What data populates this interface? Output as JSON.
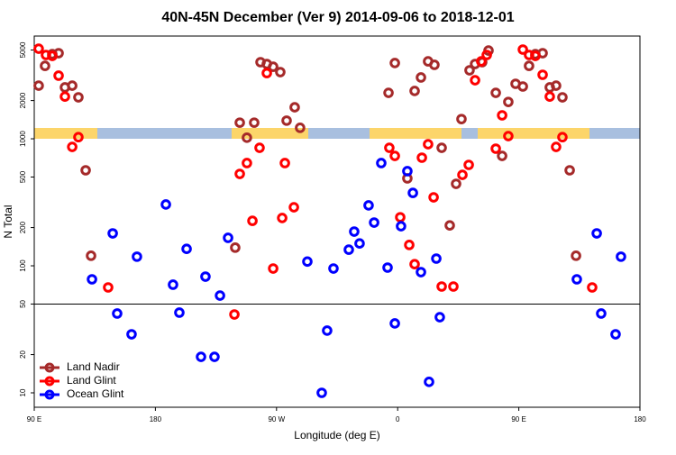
{
  "chart_data": {
    "type": "scatter",
    "title": "40N-45N December (Ver 9)   2014-09-06 to 2018-12-01",
    "x_label": "Longitude (deg E)",
    "y_label": "N Total",
    "xlim": [
      90,
      540
    ],
    "ylim": [
      7.7,
      6440
    ],
    "y_log": true,
    "legend": "lower left",
    "reference_line": 50,
    "xticks": [
      {
        "value": 90,
        "label": "90 E"
      },
      180,
      {
        "value": 270,
        "label": "90 W"
      },
      {
        "value": 360,
        "label": "0"
      },
      {
        "value": 450,
        "label": "90 E"
      },
      {
        "value": 540,
        "label": "180"
      }
    ],
    "yticks": [
      10,
      20,
      50,
      100,
      200,
      500,
      1000,
      2000,
      5000
    ],
    "series": [
      {
        "name": "Land Nadir",
        "color": "#a52a2a",
        "x": [
          93.3,
          98.0,
          103.4,
          108.1,
          112.8,
          118.2,
          122.8,
          128.2,
          132.2,
          239.3,
          242.7,
          248.0,
          253.4,
          258.1,
          262.8,
          267.5,
          272.8,
          277.5,
          283.5,
          287.5,
          353.2,
          357.9,
          367.2,
          372.6,
          377.3,
          382.6,
          387.3,
          392.7,
          398.7,
          403.4,
          407.4,
          413.4,
          417.5,
          422.8,
          427.5,
          432.9,
          437.6,
          442.2,
          447.6,
          453.0,
          457.6,
          462.3,
          467.7,
          473.0,
          477.7,
          482.4,
          487.8,
          492.5
        ],
        "values": [
          2620,
          3750,
          4640,
          4720,
          2540,
          2620,
          2120,
          565,
          120,
          139,
          1340,
          1020,
          1340,
          4010,
          3880,
          3690,
          3350,
          1390,
          1770,
          1220,
          2300,
          3950,
          488,
          2380,
          3040,
          4070,
          3820,
          849,
          208,
          442,
          1430,
          3460,
          3880,
          4010,
          4950,
          2300,
          733,
          1950,
          2710,
          2580,
          3750,
          4640,
          4720,
          2540,
          2620,
          2120,
          565,
          120
        ]
      },
      {
        "name": "Land Glint",
        "color": "#ff0000",
        "x": [
          93.3,
          98.7,
          103.4,
          108.1,
          112.8,
          118.2,
          122.8,
          144.9,
          238.7,
          242.7,
          248.0,
          252.1,
          257.4,
          262.8,
          267.5,
          274.2,
          276.2,
          282.9,
          353.8,
          357.9,
          361.9,
          368.6,
          372.6,
          378.0,
          382.6,
          386.7,
          392.7,
          401.4,
          408.1,
          412.8,
          417.5,
          422.1,
          426.2,
          432.9,
          437.6,
          442.2,
          453.0,
          457.6,
          462.3,
          467.7,
          473.0,
          477.7,
          482.4,
          504.5
        ],
        "values": [
          5120,
          4570,
          4490,
          3140,
          2150,
          863,
          1030,
          67.6,
          41.4,
          529,
          644,
          226,
          849,
          3290,
          95.2,
          238,
          644,
          289,
          849,
          733,
          241,
          146,
          103,
          710,
          906,
          346,
          68.7,
          68.7,
          520,
          623,
          2890,
          4070,
          4570,
          836,
          1530,
          1050,
          5040,
          4570,
          4490,
          3190,
          2150,
          863,
          1030,
          67.6
        ]
      },
      {
        "name": "Ocean Glint",
        "color": "#0000ff",
        "x": [
          132.9,
          148.3,
          151.6,
          162.3,
          166.3,
          187.8,
          193.1,
          197.8,
          203.2,
          213.9,
          217.2,
          223.9,
          228.0,
          234.0,
          292.9,
          303.6,
          307.6,
          312.3,
          323.7,
          327.7,
          331.7,
          338.4,
          342.5,
          347.8,
          352.5,
          357.9,
          362.5,
          367.2,
          371.3,
          377.3,
          383.3,
          388.7,
          391.3,
          493.1,
          507.9,
          511.2,
          521.9,
          525.9
        ],
        "values": [
          78.3,
          180,
          42.1,
          28.9,
          118,
          304,
          71,
          42.8,
          136,
          19.2,
          82.2,
          19.2,
          58.3,
          166,
          108,
          10,
          30.9,
          95.2,
          134,
          186,
          150,
          299,
          219,
          644,
          96.8,
          35.2,
          205,
          556,
          375,
          89.2,
          12.2,
          114,
          39.4,
          78.3,
          180,
          42.1,
          28.9,
          118
        ]
      }
    ]
  }
}
